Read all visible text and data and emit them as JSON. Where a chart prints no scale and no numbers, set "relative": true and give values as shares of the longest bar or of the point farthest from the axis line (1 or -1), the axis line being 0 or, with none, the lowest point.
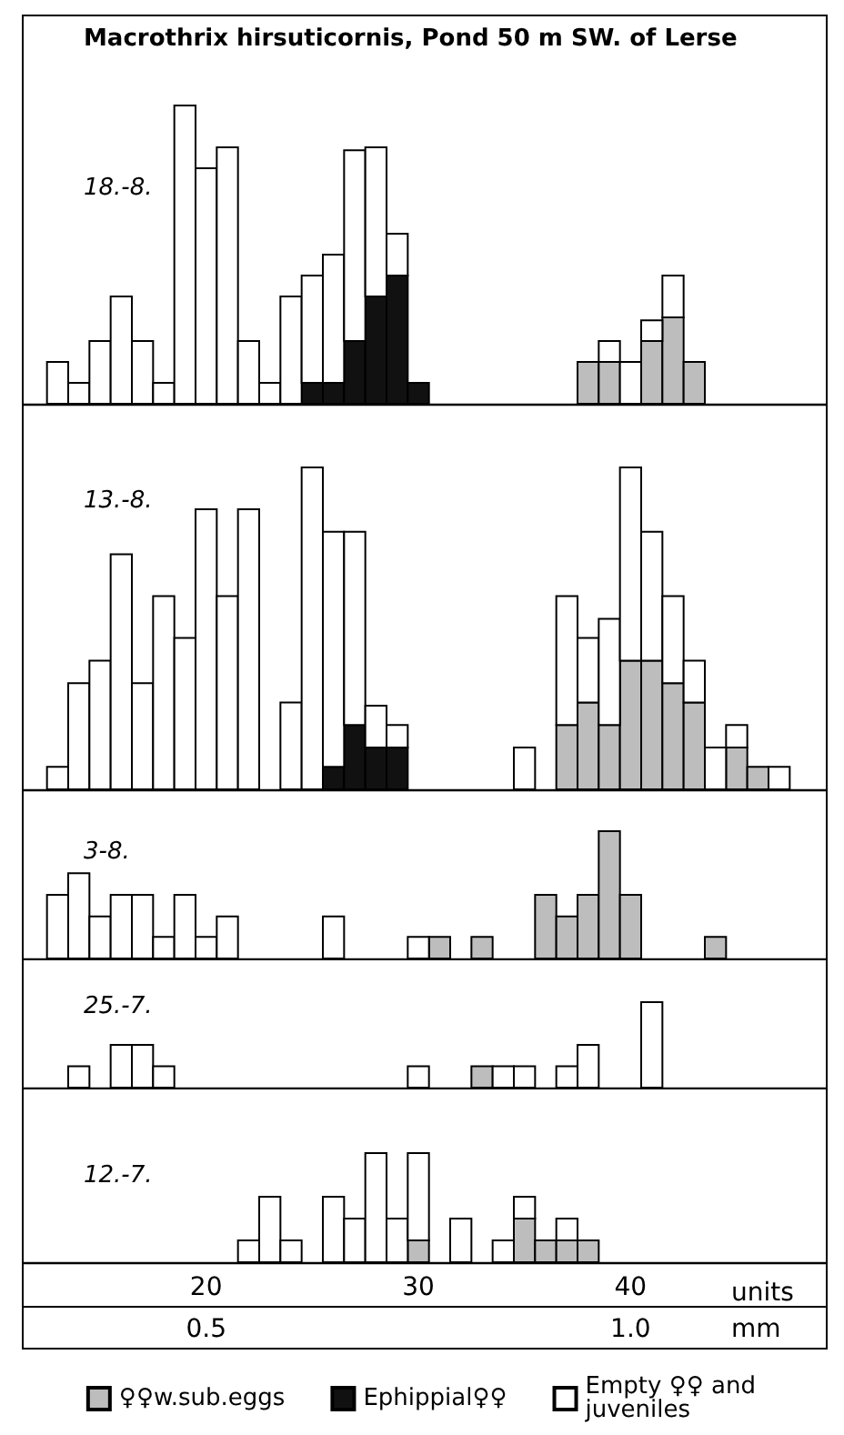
{
  "chart_data": [
    {
      "type": "bar",
      "title": "Macrothrix hirsuticornis, Pond 50 m SW. of Lerse",
      "subtitle": "18.-8.",
      "relative": true,
      "stacked": true,
      "tick_labels": false,
      "xlim": [
        11.4,
        49.2
      ],
      "x": [
        13,
        14,
        15,
        16,
        17,
        18,
        19,
        20,
        21,
        22,
        23,
        24,
        25,
        26,
        27,
        28,
        29,
        30,
        38,
        39,
        40,
        41,
        42,
        43
      ],
      "series": [
        {
          "color": "#bdbdbd",
          "values": [
            0,
            0,
            0,
            0,
            0,
            0,
            0,
            0,
            0,
            0,
            0,
            0,
            0,
            0,
            0,
            0,
            0,
            0,
            0.14,
            0.14,
            0,
            0.21,
            0.29,
            0.14
          ]
        },
        {
          "color": "#111111",
          "values": [
            0,
            0,
            0,
            0,
            0,
            0,
            0,
            0,
            0,
            0,
            0,
            0,
            0.07,
            0.07,
            0.21,
            0.36,
            0.43,
            0.07,
            0,
            0,
            0,
            0,
            0,
            0
          ]
        },
        {
          "color": "#ffffff",
          "values": [
            0.14,
            0.07,
            0.21,
            0.36,
            0.21,
            0.07,
            1,
            0.79,
            0.86,
            0.21,
            0.07,
            0.36,
            0.36,
            0.43,
            0.64,
            0.5,
            0.14,
            0,
            0,
            0.07,
            0.14,
            0.07,
            0.14,
            0
          ]
        }
      ]
    },
    {
      "type": "bar",
      "subtitle": "13.-8.",
      "relative": true,
      "stacked": true,
      "tick_labels": false,
      "xlim": [
        11.4,
        49.2
      ],
      "x": [
        13,
        14,
        15,
        16,
        17,
        18,
        19,
        20,
        21,
        22,
        24,
        25,
        26,
        27,
        28,
        29,
        35,
        37,
        38,
        39,
        40,
        41,
        42,
        43,
        44,
        45,
        46,
        47
      ],
      "series": [
        {
          "color": "#bdbdbd",
          "values": [
            0,
            0,
            0,
            0,
            0,
            0,
            0,
            0,
            0,
            0,
            0,
            0,
            0,
            0,
            0,
            0,
            0,
            0.2,
            0.27,
            0.2,
            0.4,
            0.4,
            0.33,
            0.27,
            0,
            0.13,
            0.07,
            0
          ]
        },
        {
          "color": "#111111",
          "values": [
            0,
            0,
            0,
            0,
            0,
            0,
            0,
            0,
            0,
            0,
            0,
            0,
            0.07,
            0.2,
            0.13,
            0.13,
            0,
            0,
            0,
            0,
            0,
            0,
            0,
            0,
            0,
            0,
            0,
            0
          ]
        },
        {
          "color": "#ffffff",
          "values": [
            0.07,
            0.33,
            0.4,
            0.73,
            0.33,
            0.6,
            0.47,
            0.87,
            0.6,
            0.87,
            0.27,
            1,
            0.73,
            0.6,
            0.13,
            0.07,
            0.13,
            0.4,
            0.2,
            0.33,
            0.6,
            0.4,
            0.27,
            0.13,
            0.13,
            0.07,
            0,
            0.07
          ]
        }
      ]
    },
    {
      "type": "bar",
      "subtitle": "3-8.",
      "relative": true,
      "stacked": true,
      "tick_labels": false,
      "xlim": [
        11.4,
        49.2
      ],
      "x": [
        13,
        14,
        15,
        16,
        17,
        18,
        19,
        20,
        21,
        26,
        30,
        31,
        33,
        36,
        37,
        38,
        39,
        40,
        44
      ],
      "series": [
        {
          "color": "#bdbdbd",
          "values": [
            0,
            0,
            0,
            0,
            0,
            0,
            0,
            0,
            0,
            0,
            0,
            0.17,
            0.17,
            0.5,
            0.33,
            0.5,
            1,
            0.5,
            0.17
          ]
        },
        {
          "color": "#ffffff",
          "values": [
            0.5,
            0.67,
            0.33,
            0.5,
            0.5,
            0.17,
            0.5,
            0.17,
            0.33,
            0.33,
            0.17,
            0,
            0,
            0,
            0,
            0,
            0,
            0,
            0
          ]
        }
      ]
    },
    {
      "type": "bar",
      "subtitle": "25.-7.",
      "relative": true,
      "stacked": true,
      "tick_labels": false,
      "xlim": [
        11.4,
        49.2
      ],
      "x": [
        14,
        16,
        17,
        18,
        30,
        33,
        34,
        35,
        37,
        38,
        41
      ],
      "series": [
        {
          "color": "#bdbdbd",
          "values": [
            0,
            0,
            0,
            0,
            0,
            0.25,
            0,
            0,
            0,
            0,
            0
          ]
        },
        {
          "color": "#ffffff",
          "values": [
            0.25,
            0.5,
            0.5,
            0.25,
            0.25,
            0,
            0.25,
            0.25,
            0.25,
            0.5,
            1
          ]
        }
      ]
    },
    {
      "type": "bar",
      "subtitle": "12.-7.",
      "relative": true,
      "stacked": true,
      "tick_labels": "x",
      "xlim": [
        11.4,
        49.2
      ],
      "xticks": [
        20,
        30,
        40
      ],
      "xlabel": "units",
      "x2lim": [
        0.285,
        1.23
      ],
      "x2ticks": [
        {
          "value": 0.5,
          "label": "0.5"
        },
        {
          "value": 1,
          "label": "1.0"
        }
      ],
      "x2label": "mm",
      "legend": "bottom",
      "x": [
        22,
        23,
        24,
        26,
        27,
        28,
        29,
        30,
        32,
        34,
        35,
        36,
        37,
        38
      ],
      "series": [
        {
          "name": "♀♀w.sub.eggs",
          "color": "#bdbdbd",
          "values": [
            0,
            0,
            0,
            0,
            0,
            0,
            0,
            0.2,
            0,
            0,
            0.4,
            0.2,
            0.2,
            0.2
          ]
        },
        {
          "name": "Ephippial♀♀",
          "color": "#111111",
          "values": [
            0,
            0,
            0,
            0,
            0,
            0,
            0,
            0,
            0,
            0,
            0,
            0,
            0,
            0
          ]
        },
        {
          "name": "Empty ♀♀ and juveniles",
          "color": "#ffffff",
          "values": [
            0.2,
            0.6,
            0.2,
            0.6,
            0.4,
            1,
            0.4,
            0.8,
            0.4,
            0.2,
            0.2,
            0,
            0.2,
            0
          ]
        }
      ]
    }
  ]
}
